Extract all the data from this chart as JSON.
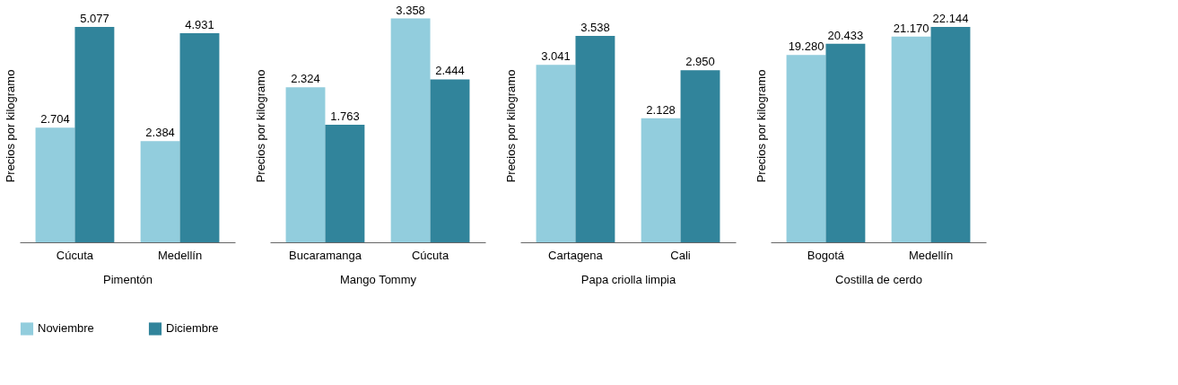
{
  "chart_data": [
    {
      "type": "bar",
      "categories": [
        "Cúcuta",
        "Medellín"
      ],
      "xlabel": "Pimentón",
      "ylabel": "Precios por kilogramo",
      "legend": "bottom",
      "series": [
        {
          "name": "Noviembre",
          "color": "#92cddd",
          "values": [
            2704,
            2384
          ],
          "value_labels": [
            "2.704",
            "2.384"
          ]
        },
        {
          "name": "Diciembre",
          "color": "#31849b",
          "values": [
            5077,
            4931
          ],
          "value_labels": [
            "5.077",
            "4.931"
          ]
        }
      ]
    },
    {
      "type": "bar",
      "categories": [
        "Bucaramanga",
        "Cúcuta"
      ],
      "xlabel": "Mango Tommy",
      "ylabel": "Precios por kilogramo",
      "series": [
        {
          "color": "#92cddd",
          "values": [
            2324,
            3358
          ],
          "value_labels": [
            "2.324",
            "3.358"
          ]
        },
        {
          "color": "#31849b",
          "values": [
            1763,
            2444
          ],
          "value_labels": [
            "1.763",
            "2.444"
          ]
        }
      ]
    },
    {
      "type": "bar",
      "categories": [
        "Cartagena",
        "Cali"
      ],
      "xlabel": "Papa criolla limpia",
      "ylabel": "Precios por kilogramo",
      "series": [
        {
          "color": "#92cddd",
          "values": [
            3041,
            2128
          ],
          "value_labels": [
            "3.041",
            "2.128"
          ]
        },
        {
          "color": "#31849b",
          "values": [
            3538,
            2950
          ],
          "value_labels": [
            "3.538",
            "2.950"
          ]
        }
      ]
    },
    {
      "type": "bar",
      "categories": [
        "Bogotá",
        "Medellín"
      ],
      "xlabel": "Costilla de cerdo",
      "ylabel": "Precios por kilogramo",
      "series": [
        {
          "color": "#92cddd",
          "values": [
            19280,
            21170
          ],
          "value_labels": [
            "19.280",
            "21.170"
          ]
        },
        {
          "color": "#31849b",
          "values": [
            20433,
            22144
          ],
          "value_labels": [
            "20.433",
            "22.144"
          ]
        }
      ]
    }
  ]
}
